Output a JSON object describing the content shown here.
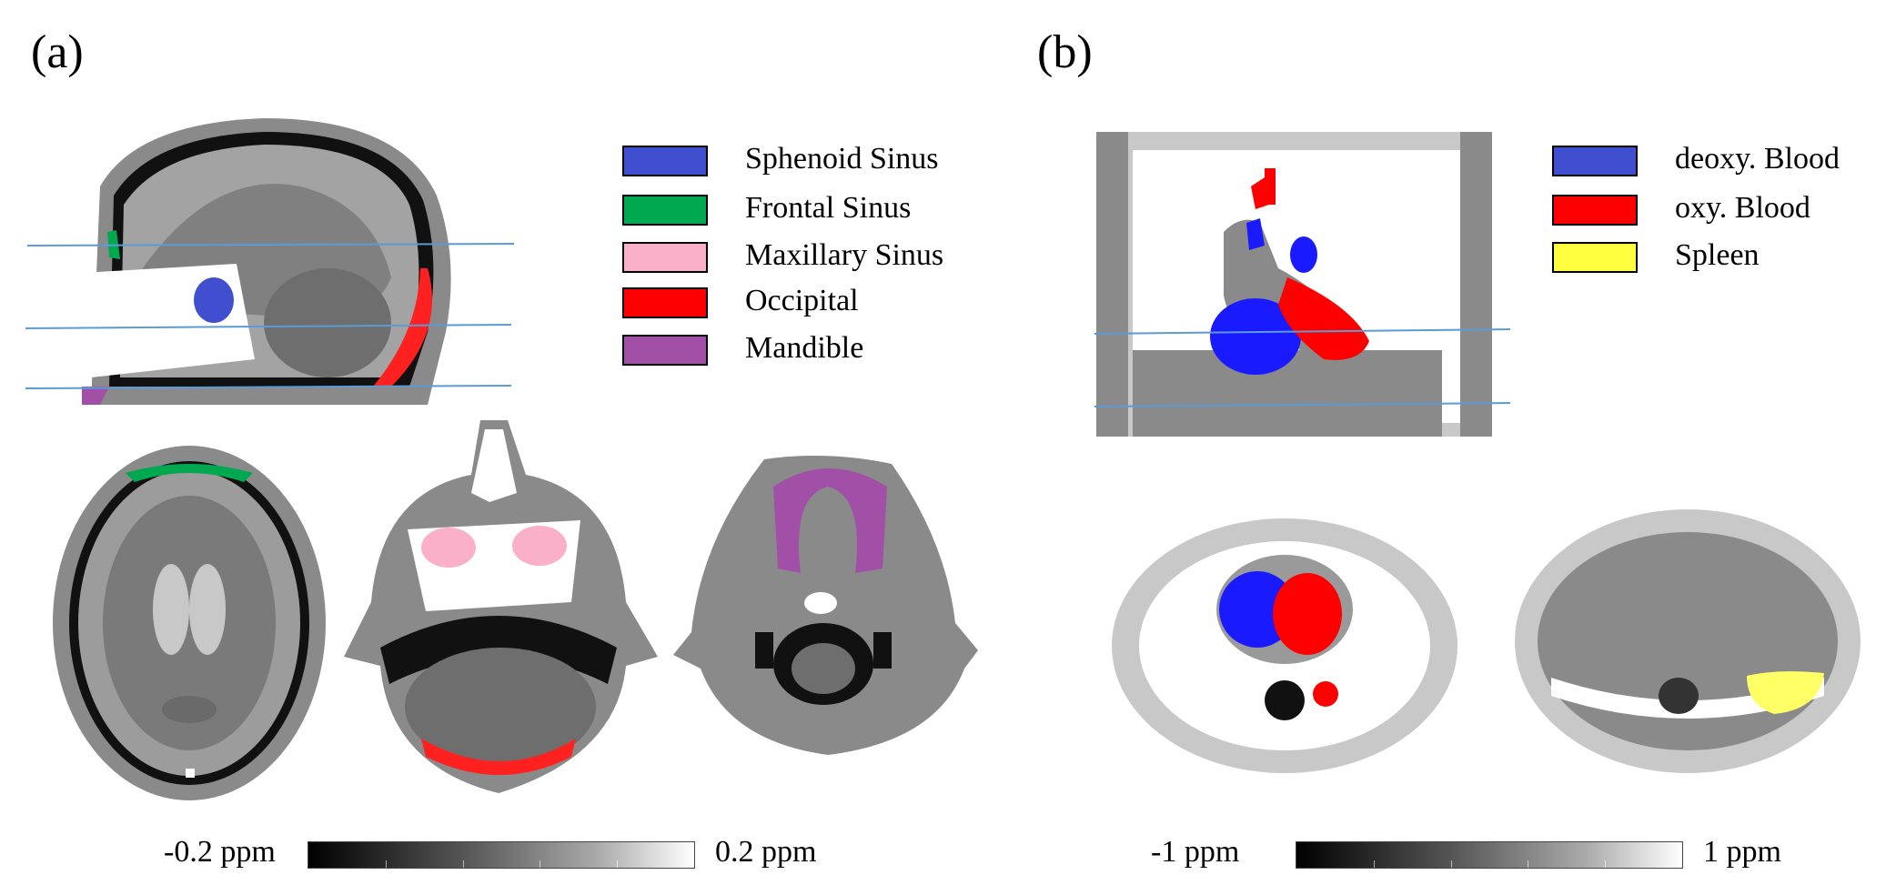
{
  "panel_a": {
    "label": "(a)",
    "legend": [
      {
        "label": "Sphenoid Sinus",
        "color": "#3f4fd0"
      },
      {
        "label": "Frontal Sinus",
        "color": "#00a84f"
      },
      {
        "label": "Maxillary Sinus",
        "color": "#f9b0c8"
      },
      {
        "label": "Occipital",
        "color": "#ff0000"
      },
      {
        "label": "Mandible",
        "color": "#a24fa8"
      }
    ],
    "colorbar": {
      "min_label": "-0.2 ppm",
      "max_label": "0.2 ppm"
    }
  },
  "panel_b": {
    "label": "(b)",
    "legend": [
      {
        "label": "deoxy. Blood",
        "color": "#3f4fd0"
      },
      {
        "label": "oxy. Blood",
        "color": "#ff0000"
      },
      {
        "label": "Spleen",
        "color": "#ffff40"
      }
    ],
    "colorbar": {
      "min_label": "-1 ppm",
      "max_label": "1 ppm"
    }
  },
  "colors": {
    "slice_line": "#5b9bd5",
    "tissue_dark": "#777777",
    "tissue_mid": "#9a9a9a",
    "tissue_light": "#c8c8c8"
  }
}
